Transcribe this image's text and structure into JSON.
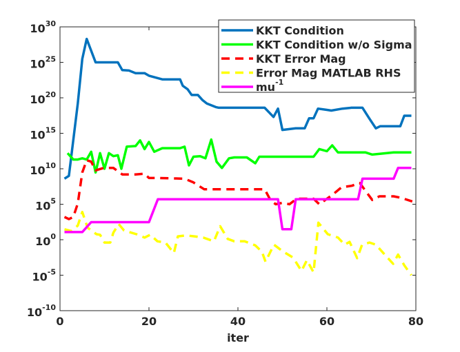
{
  "chart_data": {
    "type": "line",
    "xlabel": "iter",
    "xlim": [
      0,
      80
    ],
    "xticks": [
      0,
      20,
      40,
      60,
      80
    ],
    "ylim": [
      1e-10,
      1e+30
    ],
    "log_y": true,
    "yticks": [
      {
        "value": 1e-10,
        "label": "10^-10"
      },
      {
        "value": 1e-05,
        "label": "10^-5"
      },
      {
        "value": 1,
        "label": "10^0"
      },
      {
        "value": 100000.0,
        "label": "10^5"
      },
      {
        "value": 10000000000.0,
        "label": "10^10"
      },
      {
        "value": 1000000000000000.0,
        "label": "10^15"
      },
      {
        "value": 1e+20,
        "label": "10^20"
      },
      {
        "value": 1e+25,
        "label": "10^25"
      },
      {
        "value": 1e+30,
        "label": "10^30"
      }
    ],
    "legend": "upper right",
    "series": [
      {
        "name": "KKT Condition",
        "color": "#0072bd",
        "line_style": "solid",
        "x": [
          1,
          2,
          4,
          5,
          6,
          8,
          13,
          14,
          15.5,
          17,
          19,
          20,
          23,
          27,
          27.6,
          28.7,
          29.6,
          31,
          32,
          33,
          35,
          35.7,
          46,
          48,
          49,
          50,
          53,
          55,
          56,
          57,
          58,
          60,
          61,
          63.5,
          65.5,
          68,
          69.5,
          71,
          72,
          76.5,
          77.4,
          79
        ],
        "values": [
          400000000.0,
          1000000000.0,
          1.6e+19,
          3e+25,
          2e+28,
          1e+25,
          1e+25,
          8e+23,
          7e+23,
          3e+23,
          3e+23,
          1.3e+23,
          4e+22,
          4e+22,
          5e+21,
          1.6e+21,
          2.5e+20,
          2.5e+20,
          5e+19,
          1.6e+19,
          5e+18,
          4e+18,
          4e+18,
          2e+17,
          3e+18,
          3000000000000000.0,
          5000000000000000.0,
          5000000000000000.0,
          1.3e+17,
          1.3e+17,
          3e+18,
          2e+18,
          1.6e+18,
          3e+18,
          4e+18,
          4e+18,
          1.3e+17,
          5000000000000000.0,
          1e+16,
          1e+16,
          3e+17,
          3e+17
        ]
      },
      {
        "name": "KKT Condition w/o Sigma",
        "color": "#00ff00",
        "line_style": "solid",
        "x": [
          1.7,
          3,
          4,
          5,
          6,
          7,
          8,
          9,
          10,
          11,
          12,
          13,
          13.8,
          15,
          17,
          18,
          19,
          20,
          21.2,
          23,
          27,
          28,
          29,
          30,
          31.5,
          32.7,
          34,
          35.2,
          36.4,
          38,
          39.2,
          42,
          43.9,
          44.8,
          47.7,
          57,
          58.3,
          60,
          61.2,
          62.5,
          68.7,
          70.2,
          75,
          79
        ],
        "values": [
          1600000000000.0,
          200000000000.0,
          200000000000.0,
          300000000000.0,
          200000000000.0,
          2500000000000.0,
          3000000000.0,
          1600000000000.0,
          10000000000.0,
          1600000000000.0,
          600000000000.0,
          800000000000.0,
          10000000000.0,
          13000000000000.0,
          16000000000000.0,
          100000000000000.0,
          6000000000000.0,
          60000000000000.0,
          2500000000000.0,
          8000000000000.0,
          8000000000000.0,
          13000000000000.0,
          30000000000.0,
          500000000000.0,
          600000000000.0,
          300000000000.0,
          130000000000000.0,
          100000000000.0,
          13000000000.0,
          300000000000.0,
          400000000000.0,
          400000000000.0,
          60000000000.0,
          500000000000.0,
          500000000000.0,
          500000000000.0,
          6000000000000.0,
          3000000000000.0,
          20000000000000.0,
          2000000000000.0,
          2000000000000.0,
          1000000000000.0,
          2000000000000.0,
          2000000000000.0
        ]
      },
      {
        "name": "KKT Error Mag",
        "color": "#ff0000",
        "line_style": "dashed",
        "x": [
          1,
          2,
          3,
          4,
          5,
          6,
          7,
          8,
          9.8,
          12,
          14,
          17,
          19,
          20,
          22,
          28,
          30,
          32.4,
          46,
          47.3,
          48.5,
          50,
          51.6,
          53.2,
          57,
          58.3,
          61.2,
          63.3,
          65.6,
          67.4,
          68.8,
          70.2,
          71.8,
          75,
          76.7,
          79.2
        ],
        "values": [
          1600.0,
          800.0,
          1600.0,
          130000.0,
          3000000000.0,
          160000000000.0,
          100000000000.0,
          6000000000.0,
          13000000000.0,
          13000000000.0,
          1600000000.0,
          1600000000.0,
          2000000000.0,
          500000000.0,
          500000000.0,
          400000000.0,
          120000000.0,
          13000000.0,
          13000000.0,
          400000.0,
          100000.0,
          160000.0,
          100000.0,
          600000.0,
          600000.0,
          100000.0,
          2000000.0,
          25000000.0,
          40000000.0,
          100000000.0,
          6000000.0,
          400000.0,
          1300000.0,
          1300000.0,
          800000.0,
          250000.0
        ]
      },
      {
        "name": "Error Mag MATLAB RHS",
        "color": "#ffff00",
        "line_style": "dashed",
        "x": [
          1,
          2.6,
          4,
          5,
          6.2,
          8.2,
          9,
          10,
          11.3,
          12,
          13.2,
          14.4,
          17.2,
          19,
          20.3,
          21.9,
          23.7,
          25.6,
          26.5,
          28.4,
          30.2,
          32.2,
          34.6,
          36,
          37.7,
          39.2,
          41.5,
          43.9,
          45.4,
          46.2,
          48.1,
          50,
          52.4,
          54.3,
          55.5,
          57,
          58.1,
          60.2,
          62.5,
          64,
          65.1,
          66.8,
          67.9,
          69.6,
          71,
          72.7,
          74.9,
          76,
          77.4,
          79
        ],
        "values": [
          30,
          16,
          100,
          8000.0,
          50,
          6,
          5,
          0.4,
          0.4,
          10,
          160,
          20,
          6,
          2,
          5,
          0.6,
          0.4,
          0.013,
          3,
          4,
          3,
          2,
          0.6,
          80,
          1.3,
          0.6,
          0.6,
          0.16,
          0.02,
          0.0008,
          0.2,
          0.025,
          0.003,
          4e-05,
          0.0013,
          2.5e-05,
          250,
          6,
          2,
          0.2,
          0.5,
          0.0025,
          0.2,
          0.4,
          0.2,
          0.013,
          0.0004,
          0.008,
          0.00025,
          1e-05
        ]
      },
      {
        "name": "mu^-1",
        "color": "#ff00ff",
        "line_style": "solid",
        "x": [
          1,
          5,
          7,
          20,
          22,
          49,
          50,
          52,
          53,
          67,
          68,
          75,
          76,
          79
        ],
        "values": [
          12,
          12,
          300,
          300,
          500000.0,
          500000.0,
          30,
          30,
          500000.0,
          500000.0,
          400000000.0,
          400000000.0,
          13000000000.0,
          13000000000.0
        ]
      }
    ]
  }
}
